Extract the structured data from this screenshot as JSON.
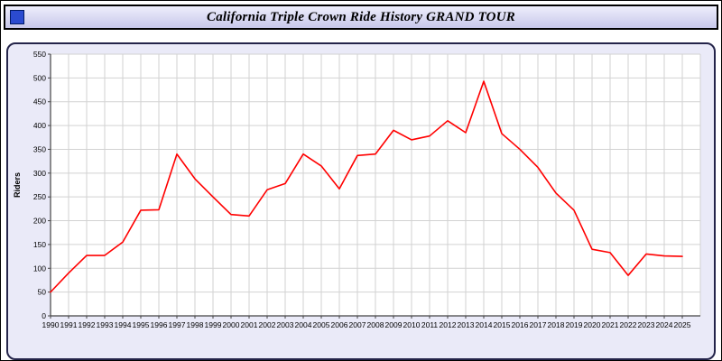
{
  "header": {
    "title": "California Triple Crown Ride History GRAND TOUR",
    "icon": "blue-square-icon",
    "icon_color": "#2b4bd0"
  },
  "chart_data": {
    "type": "line",
    "title": "California Triple Crown Ride History GRAND TOUR",
    "xlabel": "",
    "ylabel": "Riders",
    "ylim": [
      0,
      550
    ],
    "ytick_step": 50,
    "grid": true,
    "legend_position": "none",
    "plot_bg": "#ffffff",
    "grid_color": "#d2d2d2",
    "axis_color": "#444444",
    "label_color": "#000000",
    "x": [
      1990,
      1991,
      1992,
      1993,
      1994,
      1995,
      1996,
      1997,
      1998,
      1999,
      2000,
      2001,
      2002,
      2003,
      2004,
      2005,
      2006,
      2007,
      2008,
      2009,
      2010,
      2011,
      2012,
      2013,
      2014,
      2015,
      2016,
      2017,
      2018,
      2019,
      2020,
      2021,
      2022,
      2023,
      2024,
      2025
    ],
    "series": [
      {
        "name": "Riders",
        "color": "#ff0000",
        "values": [
          50,
          90,
          127,
          127,
          155,
          222,
          223,
          340,
          288,
          250,
          213,
          210,
          265,
          278,
          340,
          315,
          267,
          337,
          340,
          390,
          370,
          378,
          410,
          385,
          493,
          383,
          350,
          312,
          258,
          222,
          140,
          133,
          85,
          130,
          126,
          125
        ]
      }
    ]
  }
}
